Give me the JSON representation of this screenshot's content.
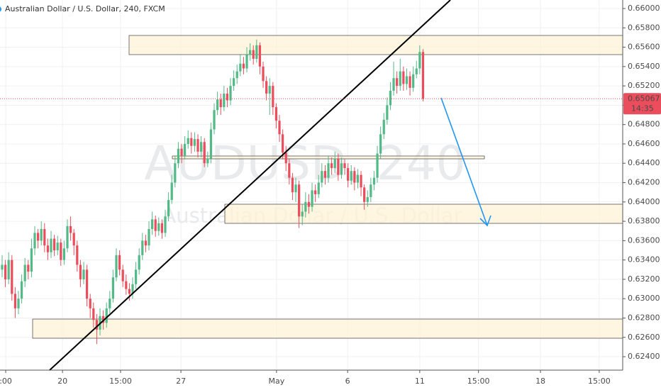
{
  "chart_data": {
    "type": "candlestick",
    "title": "Australian Dollar / U.S. Dollar, 240, FXCM",
    "watermark": "AUDUSD, 240",
    "watermark_subtitle": "Australian Dollar / U.S. Dollar",
    "last_price_label": "0.65067",
    "countdown": "14:35",
    "up_color": "#53b987",
    "down_color": "#eb4d5c",
    "grid": true,
    "ylim": [
      0.62261,
      0.66088
    ],
    "yticks": [
      {
        "value": 0.624,
        "label": "0.62400"
      },
      {
        "value": 0.626,
        "label": "0.62600"
      },
      {
        "value": 0.628,
        "label": "0.62800"
      },
      {
        "value": 0.63,
        "label": "0.63000"
      },
      {
        "value": 0.632,
        "label": "0.63200"
      },
      {
        "value": 0.634,
        "label": "0.63400"
      },
      {
        "value": 0.636,
        "label": "0.63600"
      },
      {
        "value": 0.638,
        "label": "0.63800"
      },
      {
        "value": 0.64,
        "label": "0.64000"
      },
      {
        "value": 0.642,
        "label": "0.64200"
      },
      {
        "value": 0.644,
        "label": "0.64400"
      },
      {
        "value": 0.646,
        "label": "0.64600"
      },
      {
        "value": 0.648,
        "label": "0.64800"
      },
      {
        "value": 0.65,
        "label": "0.65000"
      },
      {
        "value": 0.652,
        "label": "0.65200"
      },
      {
        "value": 0.654,
        "label": "0.65400"
      },
      {
        "value": 0.656,
        "label": "0.65600"
      },
      {
        "value": 0.658,
        "label": "0.65800"
      },
      {
        "value": 0.66,
        "label": "0.66000"
      }
    ],
    "xlim": [
      -0.65,
      190.2
    ],
    "xticks": [
      {
        "value": 1.1,
        "label": ":00"
      },
      {
        "value": 18.5,
        "label": "20"
      },
      {
        "value": 36.3,
        "label": "15:00"
      },
      {
        "value": 54.8,
        "label": "27"
      },
      {
        "value": 84.1,
        "label": "May"
      },
      {
        "value": 105.9,
        "label": "6"
      },
      {
        "value": 128,
        "label": "11"
      },
      {
        "value": 146,
        "label": "15:00"
      },
      {
        "value": 165,
        "label": "18"
      },
      {
        "value": 183,
        "label": "15:00"
      }
    ],
    "open": [
      0.633,
      0.6335,
      0.632,
      0.634,
      0.6305,
      0.629,
      0.63,
      0.6318,
      0.6335,
      0.6328,
      0.6352,
      0.6368,
      0.636,
      0.6372,
      0.6355,
      0.6348,
      0.6362,
      0.635,
      0.6358,
      0.634,
      0.6352,
      0.6375,
      0.6368,
      0.6355,
      0.6335,
      0.632,
      0.633,
      0.63,
      0.629,
      0.6278,
      0.6268,
      0.6282,
      0.6275,
      0.629,
      0.63,
      0.6322,
      0.6345,
      0.633,
      0.6318,
      0.631,
      0.6305,
      0.6315,
      0.633,
      0.6345,
      0.636,
      0.6355,
      0.6372,
      0.6382,
      0.637,
      0.6378,
      0.6368,
      0.6385,
      0.6402,
      0.642,
      0.644,
      0.6455,
      0.6448,
      0.646,
      0.6466,
      0.6458,
      0.6465,
      0.6452,
      0.6462,
      0.644,
      0.6445,
      0.6475,
      0.6495,
      0.6506,
      0.6498,
      0.6512,
      0.6505,
      0.652,
      0.6528,
      0.6535,
      0.6543,
      0.6538,
      0.6552,
      0.6557,
      0.6548,
      0.6562,
      0.654,
      0.6525,
      0.6512,
      0.652,
      0.6498,
      0.6484,
      0.647,
      0.6451,
      0.644,
      0.6425,
      0.641,
      0.6418,
      0.6385,
      0.639,
      0.64,
      0.6395,
      0.6412,
      0.6408,
      0.642,
      0.6432,
      0.6425,
      0.644,
      0.6435,
      0.6445,
      0.6428,
      0.644,
      0.6435,
      0.6422,
      0.6432,
      0.642,
      0.6428,
      0.6415,
      0.64,
      0.6405,
      0.6418,
      0.6425,
      0.645,
      0.647,
      0.6485,
      0.65,
      0.6515,
      0.6528,
      0.652,
      0.6535,
      0.6522,
      0.653,
      0.6518,
      0.6532,
      0.6538,
      0.6555
    ],
    "high": [
      0.6345,
      0.634,
      0.6348,
      0.6345,
      0.6312,
      0.6308,
      0.6325,
      0.6342,
      0.634,
      0.6362,
      0.6375,
      0.6372,
      0.638,
      0.6378,
      0.6362,
      0.637,
      0.6366,
      0.6365,
      0.6362,
      0.636,
      0.6382,
      0.6385,
      0.6372,
      0.636,
      0.634,
      0.6338,
      0.6335,
      0.6305,
      0.6296,
      0.6284,
      0.629,
      0.6288,
      0.6296,
      0.6308,
      0.633,
      0.6352,
      0.635,
      0.6335,
      0.6325,
      0.6316,
      0.6322,
      0.6338,
      0.6352,
      0.6368,
      0.6366,
      0.638,
      0.639,
      0.6386,
      0.6384,
      0.6382,
      0.6392,
      0.641,
      0.6428,
      0.6448,
      0.6462,
      0.646,
      0.6468,
      0.6474,
      0.6472,
      0.6472,
      0.647,
      0.6468,
      0.6466,
      0.6452,
      0.6482,
      0.6502,
      0.6514,
      0.6512,
      0.652,
      0.6518,
      0.6528,
      0.6536,
      0.6542,
      0.6552,
      0.655,
      0.656,
      0.6564,
      0.6562,
      0.6568,
      0.6565,
      0.6545,
      0.653,
      0.6528,
      0.6524,
      0.6502,
      0.649,
      0.6475,
      0.6458,
      0.6445,
      0.643,
      0.6425,
      0.6422,
      0.6398,
      0.641,
      0.6408,
      0.642,
      0.6418,
      0.6428,
      0.644,
      0.6438,
      0.6448,
      0.6446,
      0.6452,
      0.645,
      0.6446,
      0.6445,
      0.644,
      0.6438,
      0.6436,
      0.6434,
      0.6432,
      0.6418,
      0.6412,
      0.6425,
      0.6432,
      0.6458,
      0.6478,
      0.6492,
      0.6508,
      0.6524,
      0.6545,
      0.6535,
      0.6548,
      0.654,
      0.6538,
      0.6535,
      0.654,
      0.6546,
      0.6562,
      0.6558
    ],
    "low": [
      0.6322,
      0.6312,
      0.6315,
      0.6298,
      0.628,
      0.6284,
      0.6295,
      0.6312,
      0.632,
      0.6322,
      0.6345,
      0.6352,
      0.6355,
      0.6348,
      0.634,
      0.6342,
      0.6344,
      0.6345,
      0.6334,
      0.6335,
      0.6348,
      0.636,
      0.6345,
      0.6328,
      0.6312,
      0.6315,
      0.6292,
      0.628,
      0.627,
      0.6253,
      0.6262,
      0.6268,
      0.627,
      0.6285,
      0.6296,
      0.6318,
      0.6324,
      0.6312,
      0.6304,
      0.6298,
      0.63,
      0.631,
      0.6325,
      0.634,
      0.6348,
      0.635,
      0.6366,
      0.6364,
      0.6365,
      0.6362,
      0.6364,
      0.638,
      0.6398,
      0.6415,
      0.6435,
      0.644,
      0.6444,
      0.6455,
      0.645,
      0.6452,
      0.6446,
      0.6446,
      0.6436,
      0.6436,
      0.644,
      0.647,
      0.649,
      0.649,
      0.6494,
      0.6498,
      0.65,
      0.6515,
      0.6522,
      0.653,
      0.6532,
      0.6534,
      0.6546,
      0.6542,
      0.6544,
      0.6532,
      0.6518,
      0.6505,
      0.649,
      0.649,
      0.6476,
      0.6462,
      0.6444,
      0.6432,
      0.6418,
      0.6402,
      0.64,
      0.6373,
      0.6376,
      0.6384,
      0.6388,
      0.639,
      0.64,
      0.6404,
      0.6415,
      0.6418,
      0.642,
      0.6428,
      0.643,
      0.6422,
      0.6424,
      0.6428,
      0.6415,
      0.6418,
      0.6412,
      0.6414,
      0.6406,
      0.6392,
      0.6395,
      0.64,
      0.6412,
      0.642,
      0.6445,
      0.6465,
      0.648,
      0.6495,
      0.651,
      0.6512,
      0.6515,
      0.6515,
      0.6516,
      0.651,
      0.6514,
      0.6528,
      0.6532,
      0.6504
    ],
    "close": [
      0.6335,
      0.632,
      0.634,
      0.6305,
      0.629,
      0.63,
      0.6318,
      0.6335,
      0.6328,
      0.6352,
      0.6368,
      0.636,
      0.6372,
      0.6355,
      0.6348,
      0.6362,
      0.635,
      0.6358,
      0.634,
      0.6352,
      0.6375,
      0.6368,
      0.6355,
      0.6335,
      0.632,
      0.633,
      0.63,
      0.629,
      0.6278,
      0.6268,
      0.6282,
      0.6275,
      0.629,
      0.63,
      0.6322,
      0.6345,
      0.633,
      0.6318,
      0.631,
      0.6305,
      0.6315,
      0.633,
      0.6345,
      0.636,
      0.6355,
      0.6372,
      0.6382,
      0.637,
      0.6378,
      0.6368,
      0.6385,
      0.6402,
      0.642,
      0.644,
      0.6455,
      0.6448,
      0.646,
      0.6466,
      0.6458,
      0.6465,
      0.6452,
      0.6462,
      0.644,
      0.6445,
      0.6475,
      0.6495,
      0.6506,
      0.6498,
      0.6512,
      0.6505,
      0.652,
      0.6528,
      0.6535,
      0.6543,
      0.6538,
      0.6552,
      0.6557,
      0.6548,
      0.6562,
      0.654,
      0.6525,
      0.6512,
      0.652,
      0.6498,
      0.6484,
      0.647,
      0.6451,
      0.644,
      0.6425,
      0.641,
      0.6418,
      0.6385,
      0.639,
      0.64,
      0.6395,
      0.6412,
      0.6408,
      0.642,
      0.6432,
      0.6425,
      0.644,
      0.6435,
      0.6445,
      0.6428,
      0.644,
      0.6435,
      0.6422,
      0.6432,
      0.642,
      0.6428,
      0.6415,
      0.64,
      0.6405,
      0.6418,
      0.6425,
      0.645,
      0.647,
      0.6485,
      0.65,
      0.6515,
      0.6528,
      0.652,
      0.6535,
      0.6522,
      0.653,
      0.6518,
      0.6532,
      0.6538,
      0.6555,
      0.65067
    ]
  }
}
